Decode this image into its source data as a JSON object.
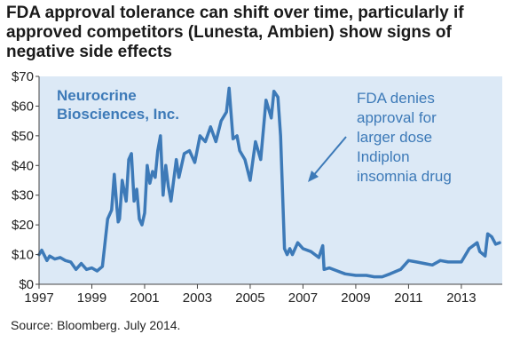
{
  "title_lines": [
    "FDA approval tolerance can shift over time, particularly if",
    "approved competitors (Lunesta, Ambien) show signs of",
    "negative side effects"
  ],
  "source": "Source: Bloomberg. July 2014.",
  "colors": {
    "line": "#3d7ab8",
    "plot_bg": "#dce9f6",
    "text": "#222222"
  },
  "chart_data": {
    "type": "line",
    "title": "FDA approval tolerance can shift over time, particularly if approved competitors (Lunesta, Ambien) show signs of negative side effects",
    "xlabel": "",
    "ylabel": "",
    "xlim": [
      1997,
      2014.55
    ],
    "ylim": [
      0,
      70
    ],
    "grid": false,
    "x_ticks": [
      1997,
      1999,
      2001,
      2003,
      2005,
      2007,
      2009,
      2011,
      2013
    ],
    "x_tick_labels": [
      "1997",
      "1999",
      "2001",
      "2003",
      "2005",
      "2007",
      "2009",
      "2011",
      "2013"
    ],
    "y_ticks": [
      0,
      10,
      20,
      30,
      40,
      50,
      60,
      70
    ],
    "y_tick_labels": [
      "$0",
      "$10",
      "$20",
      "$30",
      "$40",
      "$50",
      "$60",
      "$70"
    ],
    "series_label": [
      "Neurocrine",
      "Biosciences, Inc."
    ],
    "annotation": [
      "FDA denies",
      "approval for",
      "larger dose",
      "Indiplon",
      "insomnia drug"
    ],
    "series": [
      {
        "name": "Neurocrine Biosciences, Inc.",
        "x": [
          1997.0,
          1997.1,
          1997.3,
          1997.4,
          1997.6,
          1997.8,
          1998.0,
          1998.2,
          1998.4,
          1998.6,
          1998.8,
          1999.0,
          1999.2,
          1999.4,
          1999.6,
          1999.75,
          1999.85,
          1999.95,
          2000.0,
          2000.05,
          2000.15,
          2000.3,
          2000.4,
          2000.5,
          2000.6,
          2000.7,
          2000.8,
          2000.9,
          2001.0,
          2001.1,
          2001.2,
          2001.3,
          2001.4,
          2001.5,
          2001.6,
          2001.7,
          2001.8,
          2001.9,
          2002.0,
          2002.2,
          2002.3,
          2002.5,
          2002.7,
          2002.9,
          2003.1,
          2003.3,
          2003.5,
          2003.7,
          2003.9,
          2004.1,
          2004.2,
          2004.35,
          2004.5,
          2004.6,
          2004.8,
          2005.0,
          2005.2,
          2005.4,
          2005.6,
          2005.8,
          2005.9,
          2006.05,
          2006.15,
          2006.3,
          2006.4,
          2006.5,
          2006.6,
          2006.8,
          2007.0,
          2007.3,
          2007.6,
          2007.75,
          2007.8,
          2008.0,
          2008.3,
          2008.6,
          2009.0,
          2009.4,
          2009.7,
          2010.0,
          2010.3,
          2010.7,
          2011.0,
          2011.3,
          2011.6,
          2011.9,
          2012.2,
          2012.5,
          2012.8,
          2013.0,
          2013.3,
          2013.6,
          2013.7,
          2013.9,
          2014.0,
          2014.15,
          2014.3,
          2014.45
        ],
        "values": [
          10,
          11.5,
          8,
          9.5,
          8.5,
          9,
          8,
          7.5,
          5,
          7,
          5,
          5.5,
          4.5,
          6,
          22,
          25,
          37,
          26,
          21,
          22,
          35,
          28,
          42,
          44,
          28,
          32,
          22,
          20,
          24,
          40,
          34,
          38,
          36,
          45,
          50,
          30,
          40,
          33,
          28,
          42,
          36,
          44,
          45,
          41,
          50,
          48,
          53,
          48,
          55,
          58,
          66,
          49,
          50,
          45,
          42,
          35,
          48,
          42,
          62,
          56,
          65,
          63,
          50,
          12,
          10,
          12,
          10,
          14,
          12,
          11,
          9,
          13,
          5,
          5.5,
          4.5,
          3.5,
          3,
          3,
          2.5,
          2.5,
          3.5,
          5,
          8,
          7.5,
          7,
          6.5,
          8,
          7.5,
          7.5,
          7.5,
          12,
          14,
          11,
          9.5,
          17,
          16,
          13.5,
          14
        ]
      }
    ]
  }
}
